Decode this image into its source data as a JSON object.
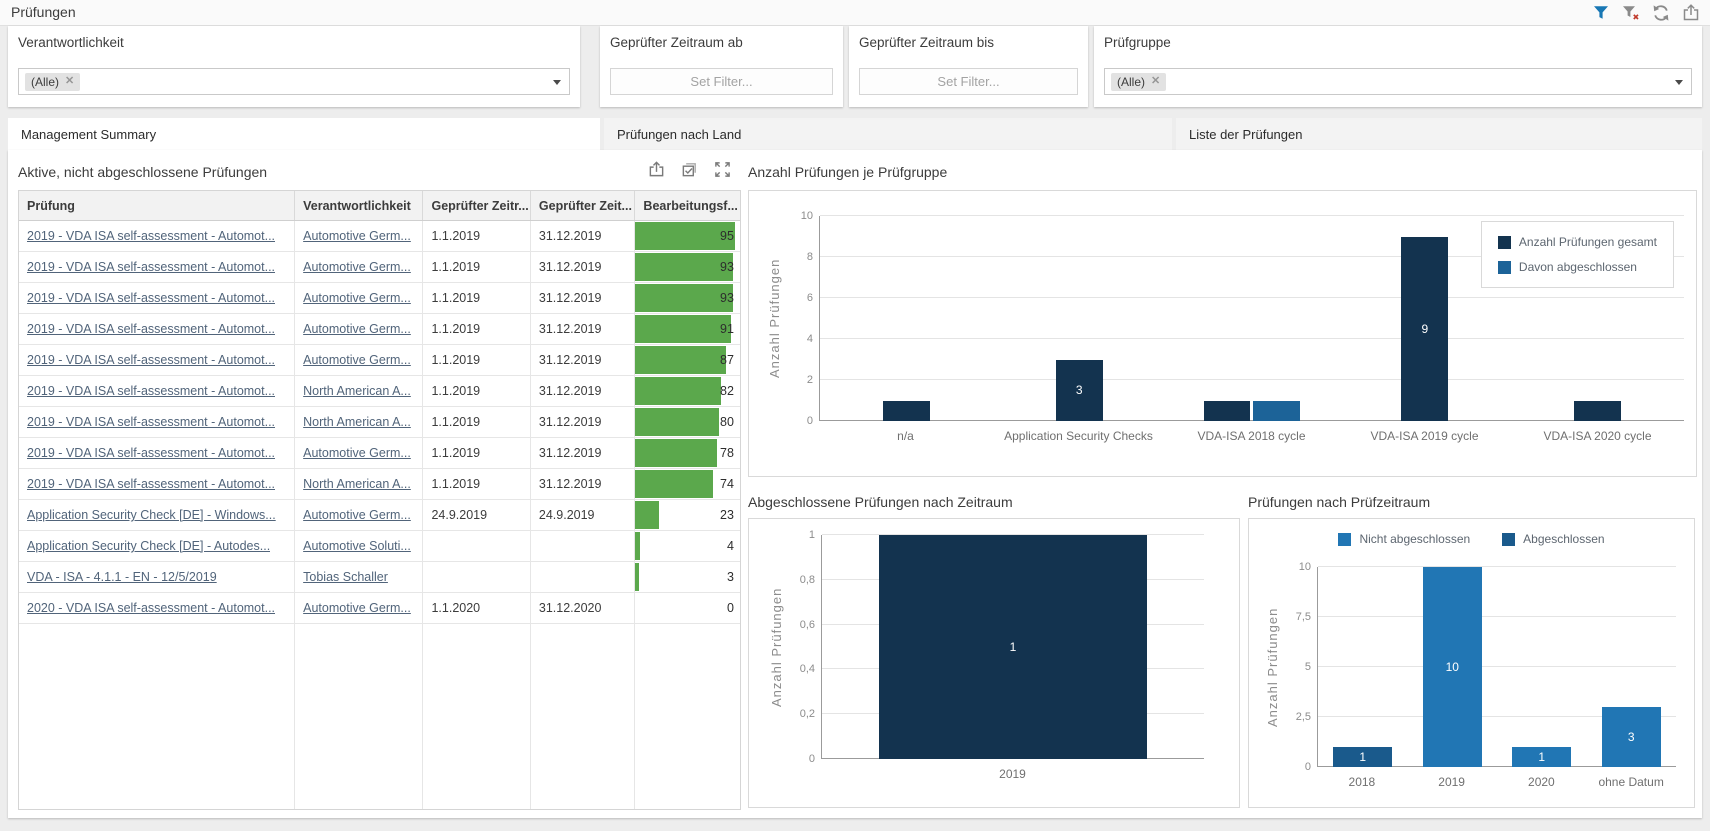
{
  "page": {
    "title": "Prüfungen"
  },
  "toolbar": {
    "icons": [
      {
        "name": "filter-icon",
        "color": "#1877b4"
      },
      {
        "name": "clear-filter-icon",
        "color": "#8a8a8a",
        "badge_color": "#c0392b"
      },
      {
        "name": "refresh-icon",
        "color": "#8a8a8a"
      },
      {
        "name": "export-icon",
        "color": "#8a8a8a"
      }
    ]
  },
  "filters": {
    "responsibility": {
      "label": "Verantwortlichkeit",
      "value": "(Alle)"
    },
    "period_from": {
      "label": "Geprüfter Zeitraum ab",
      "placeholder": "Set Filter..."
    },
    "period_to": {
      "label": "Geprüfter Zeitraum bis",
      "placeholder": "Set Filter..."
    },
    "audit_group": {
      "label": "Prüfgruppe",
      "value": "(Alle)"
    }
  },
  "tabs": [
    {
      "label": "Management Summary",
      "active": true
    },
    {
      "label": "Prüfungen nach Land",
      "active": false
    },
    {
      "label": "Liste der Prüfungen",
      "active": false
    }
  ],
  "table": {
    "title": "Aktive, nicht abgeschlossene Prüfungen",
    "columns": [
      "Prüfung",
      "Verantwortlichkeit",
      "Geprüfter Zeitr...",
      "Geprüfter Zeit...",
      "Bearbeitungsf..."
    ],
    "action_icons": [
      "export-icon",
      "copy-icon",
      "fullscreen-icon"
    ],
    "progress_color": "#5ba84c",
    "rows": [
      {
        "name": "2019 - VDA ISA self-assessment - Automot...",
        "responsible": "Automotive Germ...",
        "from": "1.1.2019",
        "to": "31.12.2019",
        "progress": 95
      },
      {
        "name": "2019 - VDA ISA self-assessment - Automot...",
        "responsible": "Automotive Germ...",
        "from": "1.1.2019",
        "to": "31.12.2019",
        "progress": 93
      },
      {
        "name": "2019 - VDA ISA self-assessment - Automot...",
        "responsible": "Automotive Germ...",
        "from": "1.1.2019",
        "to": "31.12.2019",
        "progress": 93
      },
      {
        "name": "2019 - VDA ISA self-assessment - Automot...",
        "responsible": "Automotive Germ...",
        "from": "1.1.2019",
        "to": "31.12.2019",
        "progress": 91
      },
      {
        "name": "2019 - VDA ISA self-assessment - Automot...",
        "responsible": "Automotive Germ...",
        "from": "1.1.2019",
        "to": "31.12.2019",
        "progress": 87
      },
      {
        "name": "2019 - VDA ISA self-assessment - Automot...",
        "responsible": "North American A...",
        "from": "1.1.2019",
        "to": "31.12.2019",
        "progress": 82
      },
      {
        "name": "2019 - VDA ISA self-assessment - Automot...",
        "responsible": "North American A...",
        "from": "1.1.2019",
        "to": "31.12.2019",
        "progress": 80
      },
      {
        "name": "2019 - VDA ISA self-assessment - Automot...",
        "responsible": "Automotive Germ...",
        "from": "1.1.2019",
        "to": "31.12.2019",
        "progress": 78
      },
      {
        "name": "2019 - VDA ISA self-assessment - Automot...",
        "responsible": "North American A...",
        "from": "1.1.2019",
        "to": "31.12.2019",
        "progress": 74
      },
      {
        "name": "Application Security Check [DE] - Windows...",
        "responsible": "Automotive Germ...",
        "from": "24.9.2019",
        "to": "24.9.2019",
        "progress": 23
      },
      {
        "name": "Application Security Check [DE] - Autodes...",
        "responsible": "Automotive Soluti...",
        "from": "",
        "to": "",
        "progress": 4
      },
      {
        "name": "VDA - ISA - 4.1.1 - EN - 12/5/2019",
        "responsible": "Tobias Schaller",
        "from": "",
        "to": "",
        "progress": 3
      },
      {
        "name": "2020 - VDA ISA self-assessment - Automot...",
        "responsible": "Automotive Germ...",
        "from": "1.1.2020",
        "to": "31.12.2020",
        "progress": 0
      }
    ]
  },
  "chart_data": [
    {
      "type": "bar",
      "title": "Anzahl Prüfungen je Prüfgruppe",
      "ylabel": "Anzahl Prüfungen",
      "xlabel": "",
      "ylim": [
        0,
        10
      ],
      "yticks_labels": [
        "0",
        "2",
        "4",
        "6",
        "8",
        "10"
      ],
      "grid": true,
      "bar_pct": 27,
      "categories": [
        "n/a",
        "Application Security Checks",
        "VDA-ISA 2018 cycle",
        "VDA-ISA 2019 cycle",
        "VDA-ISA 2020 cycle"
      ],
      "series": [
        {
          "name": "Anzahl Prüfungen gesamt",
          "color": "#13334f",
          "values": [
            1,
            3,
            1,
            9,
            1
          ],
          "labels": [
            null,
            "3",
            null,
            "9",
            null
          ]
        },
        {
          "name": "Davon abgeschlossen",
          "color": "#1c6398",
          "values": [
            null,
            null,
            1,
            null,
            null
          ],
          "labels": [
            null,
            null,
            null,
            null,
            null
          ]
        }
      ],
      "legend": {
        "style": "box",
        "position": "top-right",
        "entries": [
          {
            "name": "Anzahl Prüfungen gesamt",
            "color": "#13334f"
          },
          {
            "name": "Davon abgeschlossen",
            "color": "#1c6398"
          }
        ]
      }
    },
    {
      "type": "bar",
      "title": "Abgeschlossene Prüfungen nach Zeitraum",
      "ylabel": "Anzahl Prüfungen",
      "xlabel": "",
      "ylim": [
        0,
        1
      ],
      "yticks_labels": [
        "0",
        "0,2",
        "0,4",
        "0,6",
        "0,8",
        "1"
      ],
      "grid": true,
      "bar_pct": 70,
      "categories": [
        "2019"
      ],
      "series": [
        {
          "name": "Abgeschlossen",
          "color": "#13334f",
          "values": [
            1
          ],
          "labels": [
            "1"
          ]
        }
      ]
    },
    {
      "type": "bar",
      "title": "Prüfungen nach Prüfzeitraum",
      "ylabel": "Anzahl Prüfungen",
      "xlabel": "",
      "ylim": [
        0,
        10
      ],
      "yticks_labels": [
        "0",
        "2,5",
        "5",
        "7,5",
        "10"
      ],
      "grid": true,
      "bar_pct": 66,
      "categories": [
        "2018",
        "2019",
        "2020",
        "ohne Datum"
      ],
      "series": [
        {
          "name": "Abgeschlossen",
          "color": "#1a5a8c",
          "values": [
            1,
            null,
            null,
            null
          ],
          "labels": [
            "1",
            null,
            null,
            null
          ]
        },
        {
          "name": "Nicht abgeschlossen",
          "color": "#2176b4",
          "values": [
            null,
            10,
            1,
            3
          ],
          "labels": [
            null,
            "10",
            "1",
            "3"
          ]
        }
      ],
      "legend": {
        "style": "row",
        "position": "top",
        "entries": [
          {
            "name": "Nicht abgeschlossen",
            "color": "#2176b4"
          },
          {
            "name": "Abgeschlossen",
            "color": "#1a5a8c"
          }
        ]
      }
    }
  ]
}
